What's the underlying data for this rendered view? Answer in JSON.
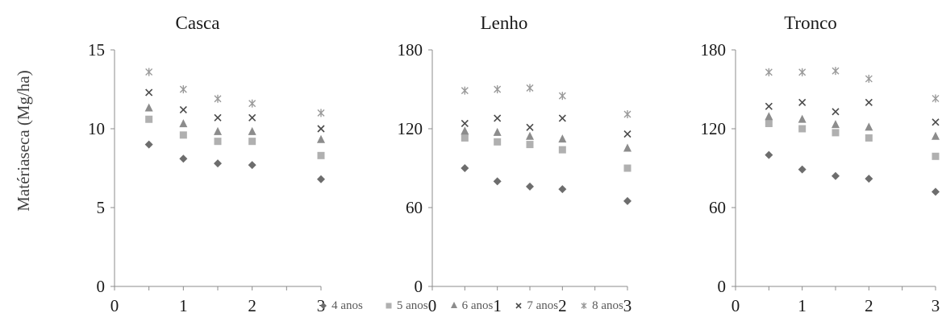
{
  "ylabel": "Matériaseca (Mg/ha)",
  "legend": [
    {
      "name": "4 anos",
      "marker": "diamond",
      "color": "#6d6d6d"
    },
    {
      "name": "5 anos",
      "marker": "square",
      "color": "#b0b0b0"
    },
    {
      "name": "6 anos",
      "marker": "triangle",
      "color": "#8c8c8c"
    },
    {
      "name": "7 anos",
      "marker": "x",
      "color": "#4a4a4a"
    },
    {
      "name": "8 anos",
      "marker": "star",
      "color": "#9a9a9a"
    }
  ],
  "chart_data": [
    {
      "type": "scatter",
      "title": "Casca",
      "ylabel": "Matériaseca (Mg/ha)",
      "xlim": [
        0,
        3
      ],
      "ylim": [
        0,
        15
      ],
      "xticks": [
        0,
        1,
        2,
        3
      ],
      "yticks": [
        0,
        5,
        10,
        15
      ],
      "x": [
        0.5,
        1,
        1.5,
        2,
        3
      ],
      "series": [
        {
          "name": "4 anos",
          "values": [
            9.0,
            8.1,
            7.8,
            7.7,
            6.8
          ]
        },
        {
          "name": "5 anos",
          "values": [
            10.6,
            9.6,
            9.2,
            9.2,
            8.3
          ]
        },
        {
          "name": "6 anos",
          "values": [
            11.3,
            10.3,
            9.8,
            9.8,
            9.3
          ]
        },
        {
          "name": "7 anos",
          "values": [
            12.3,
            11.2,
            10.7,
            10.7,
            10.0
          ]
        },
        {
          "name": "8 anos",
          "values": [
            13.6,
            12.5,
            11.9,
            11.6,
            11.0
          ]
        }
      ]
    },
    {
      "type": "scatter",
      "title": "Lenho",
      "xlim": [
        0,
        3
      ],
      "ylim": [
        0,
        180
      ],
      "xticks": [
        0,
        1,
        2,
        3
      ],
      "yticks": [
        0,
        60,
        120,
        180
      ],
      "x": [
        0.5,
        1,
        1.5,
        2,
        3
      ],
      "series": [
        {
          "name": "4 anos",
          "values": [
            90,
            80,
            76,
            74,
            65
          ]
        },
        {
          "name": "5 anos",
          "values": [
            113,
            110,
            108,
            104,
            90
          ]
        },
        {
          "name": "6 anos",
          "values": [
            118,
            117,
            114,
            112,
            105
          ]
        },
        {
          "name": "7 anos",
          "values": [
            124,
            128,
            121,
            128,
            116
          ]
        },
        {
          "name": "8 anos",
          "values": [
            149,
            150,
            151,
            145,
            131
          ]
        }
      ]
    },
    {
      "type": "scatter",
      "title": "Tronco",
      "xlim": [
        0,
        3
      ],
      "ylim": [
        0,
        180
      ],
      "xticks": [
        0,
        1,
        2,
        3
      ],
      "yticks": [
        0,
        60,
        120,
        180
      ],
      "x": [
        0.5,
        1,
        1.5,
        2,
        3
      ],
      "series": [
        {
          "name": "4 anos",
          "values": [
            100,
            89,
            84,
            82,
            72
          ]
        },
        {
          "name": "5 anos",
          "values": [
            124,
            120,
            117,
            113,
            99
          ]
        },
        {
          "name": "6 anos",
          "values": [
            129,
            127,
            123,
            121,
            114
          ]
        },
        {
          "name": "7 anos",
          "values": [
            137,
            140,
            133,
            140,
            125
          ]
        },
        {
          "name": "8 anos",
          "values": [
            163,
            163,
            164,
            158,
            143
          ]
        }
      ]
    }
  ]
}
